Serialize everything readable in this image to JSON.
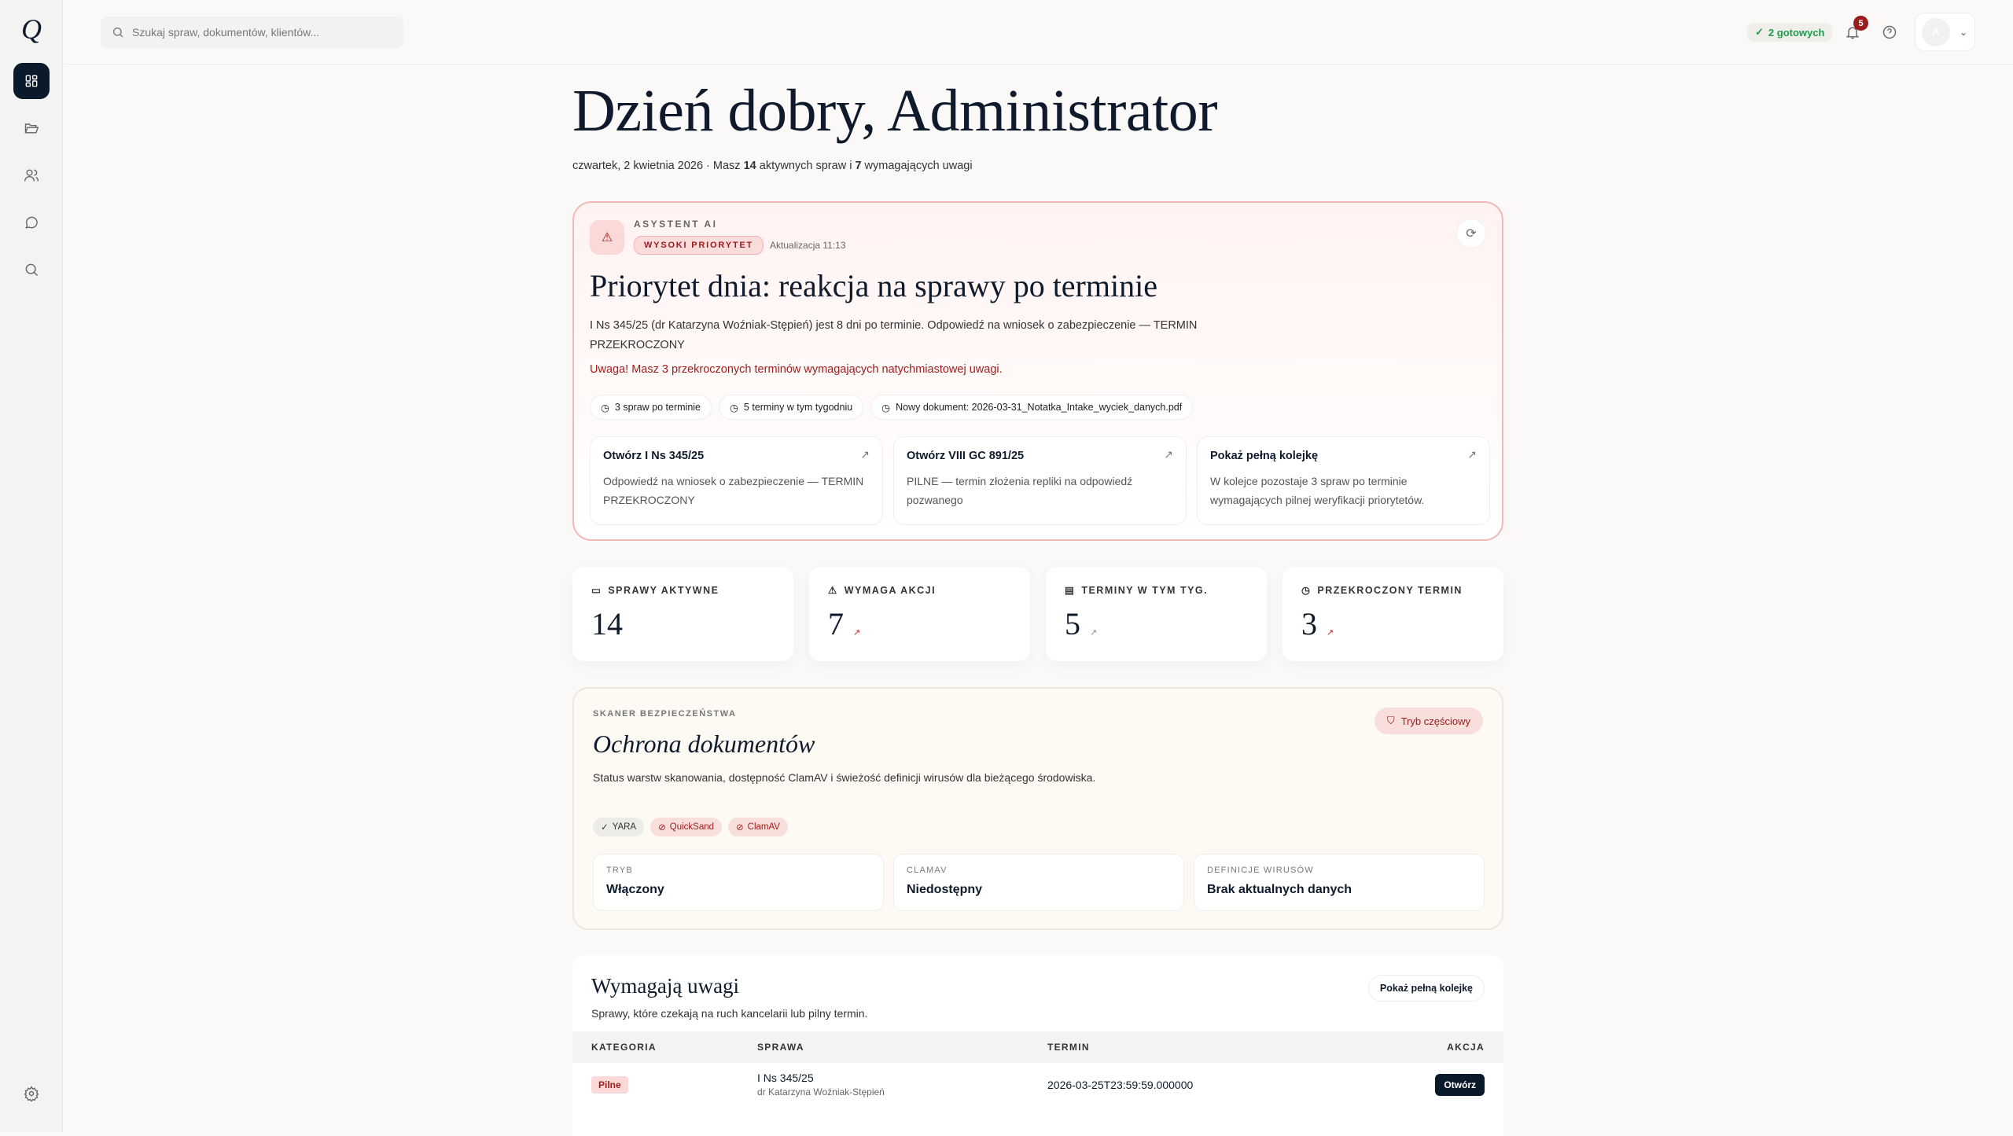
{
  "sidebar": {
    "logo": "Q",
    "items": [
      {
        "name": "dashboard",
        "icon": "dashboard-icon",
        "active": true
      },
      {
        "name": "cases",
        "icon": "folder-icon"
      },
      {
        "name": "clients",
        "icon": "users-icon"
      },
      {
        "name": "chat",
        "icon": "chat-icon"
      },
      {
        "name": "search",
        "icon": "search-icon"
      }
    ],
    "settings_icon": "gear-icon"
  },
  "topbar": {
    "search_placeholder": "Szukaj spraw, dokumentów, klientów...",
    "ready_label": "2 gotowych",
    "notifications_count": "5",
    "avatar_initial": "A"
  },
  "greeting": {
    "title": "Dzień dobry, Administrator",
    "date": "czwartek, 2 kwietnia 2026 · Masz ",
    "active_count": "14",
    "mid": " aktywnych spraw i ",
    "attention_count": "7",
    "end": " wymagających uwagi"
  },
  "assistant": {
    "eyebrow": "ASYSTENT AI",
    "priority": "WYSOKI PRIORYTET",
    "updated": "Aktualizacja 11:13",
    "title": "Priorytet dnia: reakcja na sprawy po terminie",
    "body": "I Ns 345/25 (dr Katarzyna Woźniak-Stępień) jest 8 dni po terminie. Odpowiedź na wniosek o zabezpieczenie — TERMIN PRZEKROCZONY",
    "alert": "Uwaga! Masz 3 przekroczonych terminów wymagających natychmiastowej uwagi.",
    "chips": [
      "3 spraw po terminie",
      "5 terminy w tym tygodniu",
      "Nowy dokument: 2026-03-31_Notatka_Intake_wyciek_danych.pdf"
    ],
    "actions": [
      {
        "title": "Otwórz I Ns 345/25",
        "desc": "Odpowiedź na wniosek o zabezpieczenie — TERMIN PRZEKROCZONY"
      },
      {
        "title": "Otwórz VIII GC 891/25",
        "desc": "PILNE — termin złożenia repliki na odpowiedź pozwanego"
      },
      {
        "title": "Pokaż pełną kolejkę",
        "desc": "W kolejce pozostaje 3 spraw po terminie wymagających pilnej weryfikacji priorytetów."
      }
    ]
  },
  "stats": [
    {
      "label": "SPRAWY AKTYWNE",
      "value": "14",
      "icon": "folder-icon",
      "trend": ""
    },
    {
      "label": "WYMAGA AKCJI",
      "value": "7",
      "icon": "warning-icon",
      "trend": "↗"
    },
    {
      "label": "TERMINY W TYM TYG.",
      "value": "5",
      "icon": "calendar-icon",
      "trend": "↗"
    },
    {
      "label": "PRZEKROCZONY TERMIN",
      "value": "3",
      "icon": "clock-icon",
      "trend": "↗"
    }
  ],
  "security": {
    "eyebrow": "SKANER BEZPIECZEŃSTWA",
    "title": "Ochrona dokumentów",
    "desc": "Status warstw skanowania, dostępność ClamAV i świeżość definicji wirusów dla bieżącego środowiska.",
    "mode_badge": "Tryb częściowy",
    "tags": [
      {
        "label": "YARA",
        "ok": true
      },
      {
        "label": "QuickSand",
        "ok": false
      },
      {
        "label": "ClamAV",
        "ok": false
      }
    ],
    "boxes": [
      {
        "k": "TRYB",
        "v": "Włączony"
      },
      {
        "k": "CLAMAV",
        "v": "Niedostępny"
      },
      {
        "k": "DEFINICJE WIRUSÓW",
        "v": "Brak aktualnych danych"
      }
    ]
  },
  "attention": {
    "title": "Wymagają uwagi",
    "desc": "Sprawy, które czekają na ruch kancelarii lub pilny termin.",
    "show_queue": "Pokaż pełną kolejkę",
    "columns": [
      "KATEGORIA",
      "SPRAWA",
      "TERMIN",
      "AKCJA"
    ],
    "rows": [
      {
        "category": "Pilne",
        "case": "I Ns 345/25",
        "client": "dr Katarzyna Woźniak-Stępień",
        "deadline": "2026-03-25T23:59:59.000000",
        "action": "Otwórz"
      }
    ]
  },
  "colors": {
    "accent": "#0b1a2b",
    "danger": "#9b1c1c",
    "success": "#1f9d4c"
  }
}
